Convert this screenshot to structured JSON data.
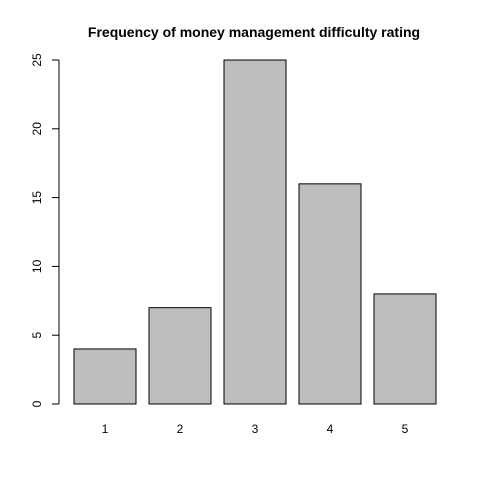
{
  "chart_data": {
    "type": "bar",
    "title": "Frequency of money management difficulty rating",
    "xlabel": "",
    "ylabel": "",
    "categories": [
      "1",
      "2",
      "3",
      "4",
      "5"
    ],
    "values": [
      4,
      7,
      25,
      16,
      8
    ],
    "ylim": [
      0,
      25
    ],
    "yticks": [
      "0",
      "5",
      "10",
      "15",
      "20",
      "25"
    ],
    "grid": false,
    "legend": "none",
    "bar_color": "#bebebe",
    "border_color": "#000000"
  }
}
